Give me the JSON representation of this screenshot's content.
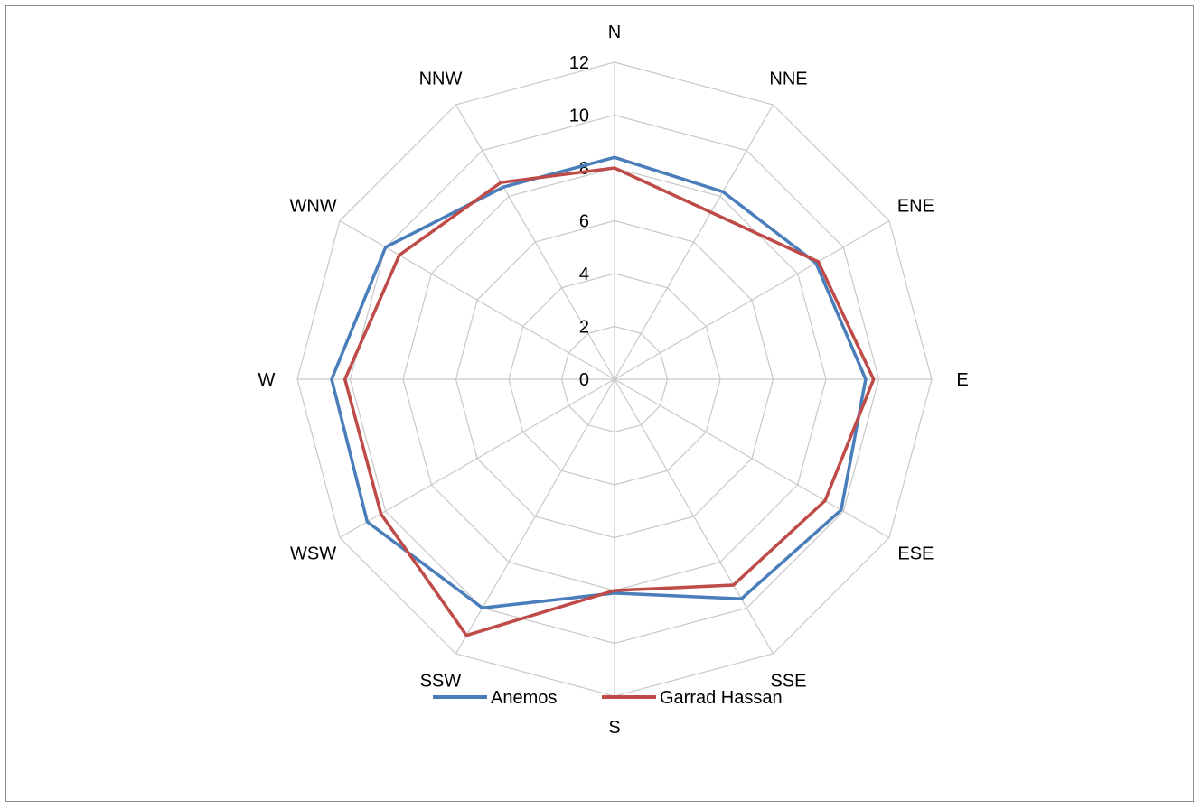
{
  "chart_data": {
    "type": "radar",
    "title": "",
    "directions": [
      "N",
      "NNE",
      "ENE",
      "E",
      "ESE",
      "SSE",
      "S",
      "SSW",
      "WSW",
      "W",
      "WNW",
      "NNW"
    ],
    "radial_ticks": [
      "0",
      "2",
      "4",
      "6",
      "8",
      "10",
      "12"
    ],
    "rmax": 12,
    "grid": true,
    "legend_position": "bottom",
    "series": [
      {
        "name": "Anemos",
        "color": "#4a7ebb",
        "values": [
          8.4,
          8.2,
          8.8,
          9.5,
          9.9,
          9.6,
          8.1,
          10.0,
          10.8,
          10.7,
          10.0,
          8.4
        ]
      },
      {
        "name": "Garrad Hassan",
        "color": "#be4b48",
        "values": [
          8.0,
          7.3,
          8.9,
          9.8,
          9.2,
          9.0,
          8.0,
          11.2,
          10.2,
          10.2,
          9.4,
          8.6
        ]
      }
    ]
  }
}
